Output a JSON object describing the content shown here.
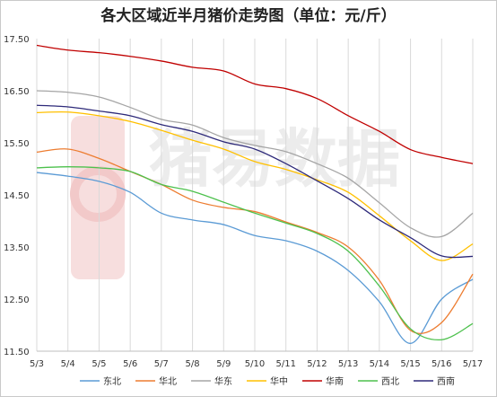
{
  "chart_data": {
    "type": "line",
    "title": "各大区域近半月猪价走势图（单位：元/斤）",
    "xlabel": "",
    "ylabel": "",
    "categories": [
      "5/3",
      "5/4",
      "5/5",
      "5/6",
      "5/7",
      "5/8",
      "5/9",
      "5/10",
      "5/11",
      "5/12",
      "5/13",
      "5/14",
      "5/15",
      "5/16",
      "5/17"
    ],
    "yticks": [
      "11.50",
      "12.50",
      "13.50",
      "14.50",
      "15.50",
      "16.50",
      "17.50"
    ],
    "ylim": [
      11.5,
      17.5
    ],
    "grid": "vertical",
    "legend_position": "bottom",
    "series": [
      {
        "name": "东北",
        "color": "#5b9bd5",
        "values": [
          14.93,
          14.86,
          14.76,
          14.55,
          14.15,
          14.02,
          13.93,
          13.72,
          13.62,
          13.42,
          13.05,
          12.45,
          11.65,
          12.5,
          12.88
        ]
      },
      {
        "name": "华北",
        "color": "#ed7d31",
        "values": [
          15.32,
          15.38,
          15.2,
          14.95,
          14.7,
          14.4,
          14.26,
          14.18,
          13.98,
          13.78,
          13.5,
          12.86,
          11.9,
          12.05,
          12.98
        ]
      },
      {
        "name": "华东",
        "color": "#a5a5a5",
        "values": [
          16.5,
          16.47,
          16.38,
          16.18,
          15.95,
          15.84,
          15.6,
          15.45,
          15.33,
          15.1,
          14.82,
          14.35,
          13.87,
          13.7,
          14.15
        ]
      },
      {
        "name": "华中",
        "color": "#ffc000",
        "values": [
          16.08,
          16.09,
          16.02,
          15.91,
          15.74,
          15.55,
          15.38,
          15.14,
          14.99,
          14.79,
          14.55,
          14.1,
          13.62,
          13.24,
          13.56
        ]
      },
      {
        "name": "华南",
        "color": "#c00000",
        "values": [
          17.37,
          17.28,
          17.23,
          17.16,
          17.07,
          16.95,
          16.88,
          16.63,
          16.54,
          16.35,
          16.02,
          15.72,
          15.37,
          15.22,
          15.1
        ]
      },
      {
        "name": "西北",
        "color": "#4dc14d",
        "values": [
          15.02,
          15.04,
          15.02,
          14.95,
          14.7,
          14.57,
          14.36,
          14.15,
          13.96,
          13.76,
          13.42,
          12.75,
          11.93,
          11.72,
          12.03
        ]
      },
      {
        "name": "西南",
        "color": "#2e2a7a",
        "values": [
          16.22,
          16.19,
          16.11,
          16.02,
          15.85,
          15.72,
          15.52,
          15.38,
          15.1,
          14.77,
          14.43,
          14.02,
          13.68,
          13.33,
          13.32
        ]
      }
    ]
  },
  "watermark": {
    "text": "猪易数据"
  }
}
